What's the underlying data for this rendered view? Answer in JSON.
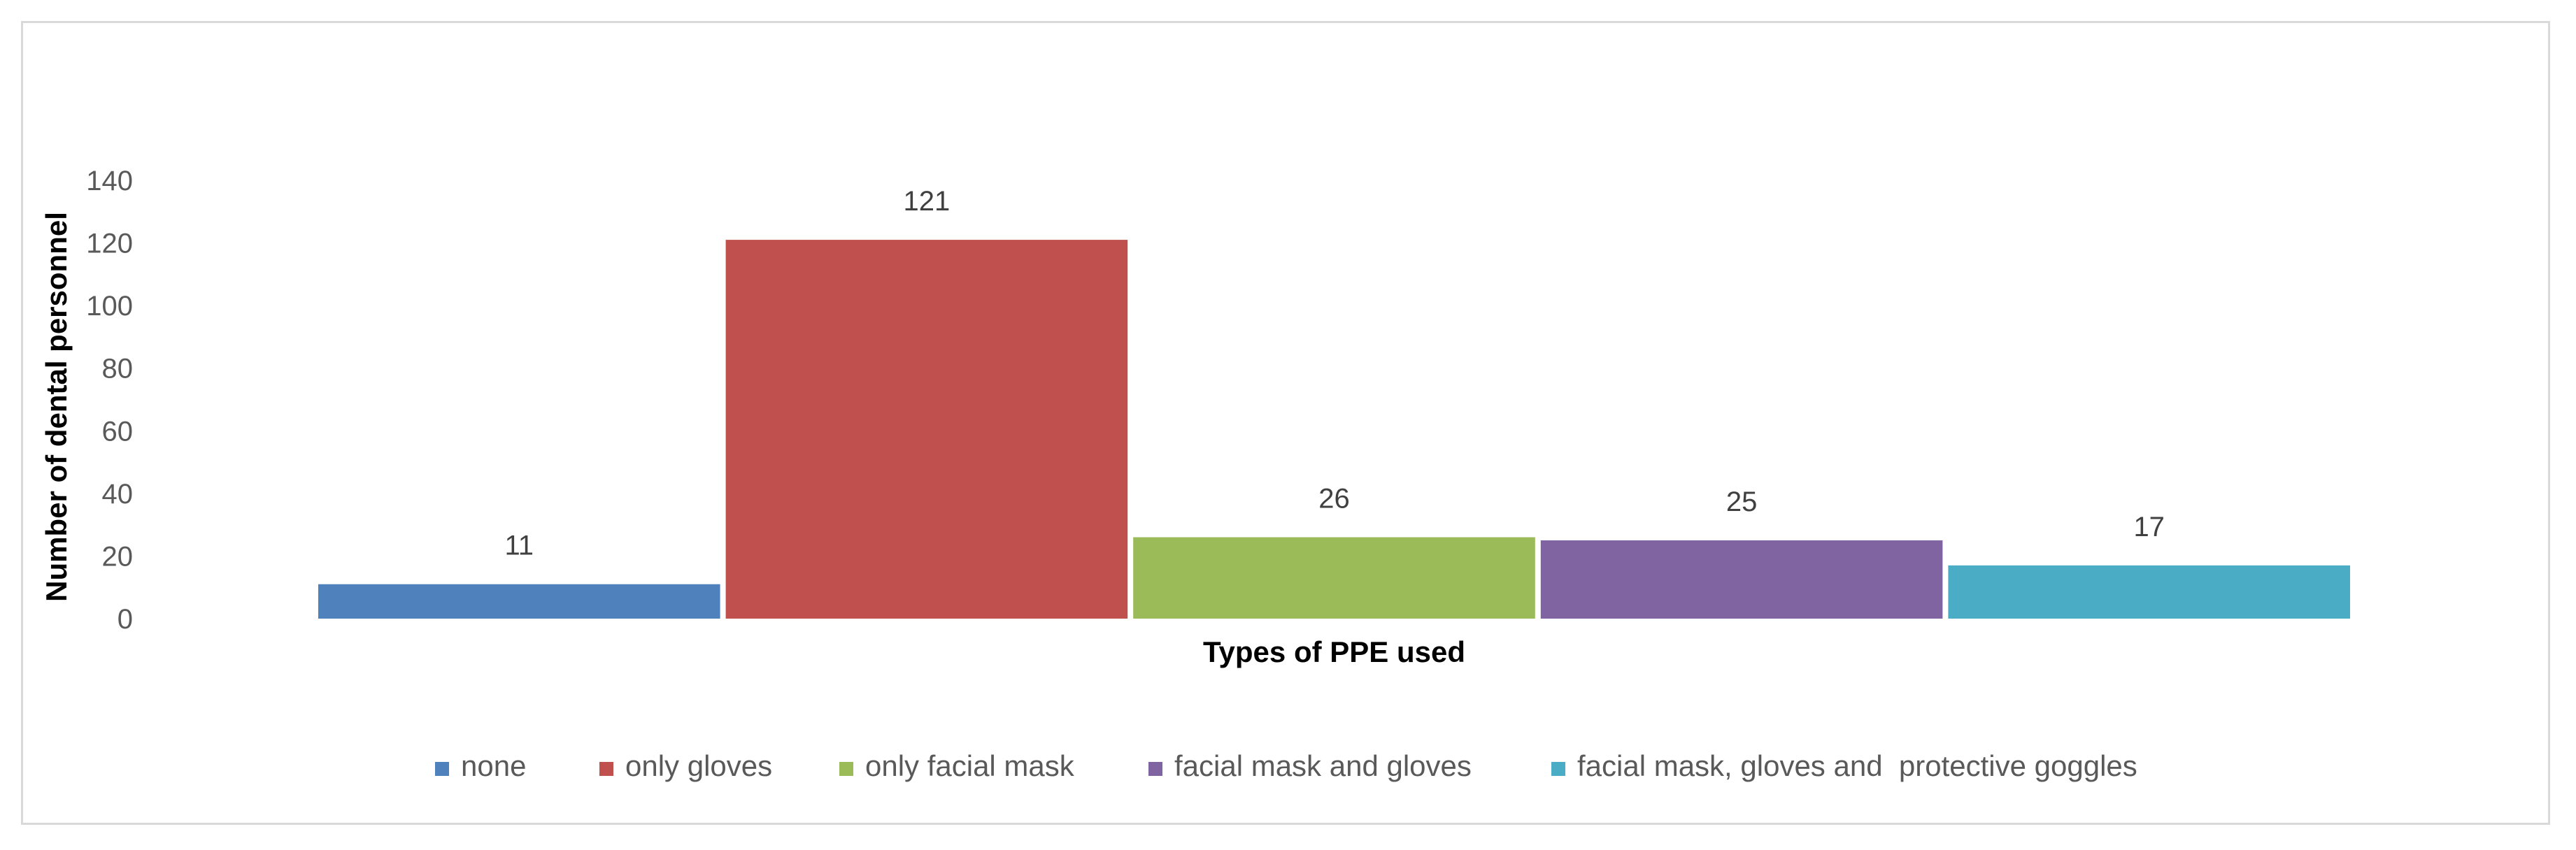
{
  "chart_data": {
    "type": "bar",
    "categories": [
      "none",
      "only gloves",
      "only facial mask",
      "facial mask and gloves",
      "facial mask, gloves and  protective goggles"
    ],
    "values": [
      11,
      121,
      26,
      25,
      17
    ],
    "colors": [
      "#4f81bd",
      "#c0504d",
      "#9bbb59",
      "#8064a2",
      "#4bacc6"
    ],
    "title": "",
    "xlabel": "Types of PPE used",
    "ylabel": "Number of dental personnel",
    "ylim": [
      0,
      140
    ],
    "yticks": [
      "0",
      "20",
      "40",
      "60",
      "80",
      "100",
      "120",
      "140"
    ],
    "grid": false,
    "legend_position": "bottom",
    "data_labels": true
  }
}
